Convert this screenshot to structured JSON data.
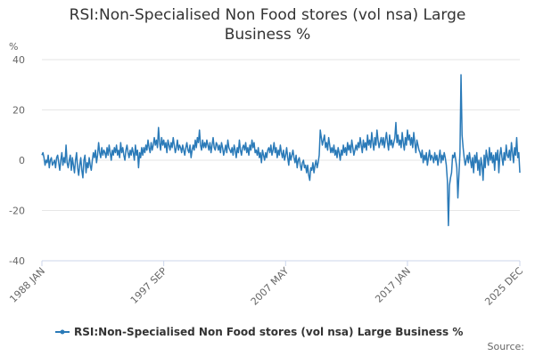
{
  "chart_data": {
    "type": "line",
    "title": [
      "RSI:Non-Specialised Non Food stores (vol nsa) Large",
      "Business %"
    ],
    "y_label": "%",
    "source": "Source:",
    "ylim": [
      -40,
      40
    ],
    "yticks": [
      -40,
      -20,
      0,
      20,
      40
    ],
    "grid": true,
    "legend": "bottom",
    "categories": [
      "1988 JAN",
      null,
      null,
      null,
      null,
      null,
      null,
      null,
      null,
      null,
      null,
      null,
      null,
      null,
      null,
      null,
      null,
      null,
      null,
      null,
      null,
      null,
      null,
      null,
      null,
      null,
      null,
      null,
      null,
      null,
      null,
      null,
      null,
      null,
      null,
      null,
      null,
      null,
      null,
      null,
      null,
      null,
      null,
      null,
      null,
      null,
      null,
      null,
      null,
      null,
      null,
      null,
      null,
      null,
      null,
      null,
      null,
      null,
      null,
      null,
      null,
      null,
      null,
      null,
      null,
      null,
      null,
      null,
      null,
      null,
      null,
      null,
      null,
      null,
      null,
      null,
      null,
      null,
      null,
      null,
      null,
      null,
      null,
      null,
      null,
      null,
      null,
      null,
      null,
      null,
      null,
      null,
      null,
      null,
      null,
      null,
      null,
      null,
      null,
      null,
      null,
      null,
      null,
      null,
      null,
      null,
      null,
      null,
      null,
      null,
      null,
      null,
      null,
      null,
      null,
      null,
      "1997 SEP",
      null,
      null,
      null,
      null,
      null,
      null,
      null,
      null,
      null,
      null,
      null,
      null,
      null,
      null,
      null,
      null,
      null,
      null,
      null,
      null,
      null,
      null,
      null,
      null,
      null,
      null,
      null,
      null,
      null,
      null,
      null,
      null,
      null,
      null,
      null,
      null,
      null,
      null,
      null,
      null,
      null,
      null,
      null,
      null,
      null,
      null,
      null,
      null,
      null,
      null,
      null,
      null,
      null,
      null,
      null,
      null,
      null,
      null,
      null,
      null,
      null,
      null,
      null,
      null,
      null,
      null,
      null,
      null,
      null,
      null,
      null,
      null,
      null,
      null,
      null,
      null,
      null,
      null,
      null,
      null,
      null,
      null,
      null,
      null,
      null,
      null,
      null,
      null,
      null,
      null,
      null,
      null,
      null,
      null,
      null,
      null,
      null,
      null,
      null,
      null,
      null,
      null,
      null,
      null,
      null,
      null,
      null,
      null,
      null,
      null,
      null,
      null,
      null,
      null,
      null,
      "2007 MAY",
      null,
      null,
      null,
      null,
      null,
      null,
      null,
      null,
      null,
      null,
      null,
      null,
      null,
      null,
      null,
      null,
      null,
      null,
      null,
      null,
      null,
      null,
      null,
      null,
      null,
      null,
      null,
      null,
      null,
      null,
      null,
      null,
      null,
      null,
      null,
      null,
      null,
      null,
      null,
      null,
      null,
      null,
      null,
      null,
      null,
      null,
      null,
      null,
      null,
      null,
      null,
      null,
      null,
      null,
      null,
      null,
      null,
      null,
      null,
      null,
      null,
      null,
      null,
      null,
      null,
      null,
      null,
      null,
      null,
      null,
      null,
      null,
      null,
      null,
      null,
      null,
      null,
      null,
      null,
      null,
      null,
      null,
      null,
      null,
      null,
      null,
      null,
      null,
      null,
      null,
      null,
      null,
      null,
      null,
      null,
      null,
      null,
      null,
      null,
      null,
      null,
      null,
      null,
      null,
      null,
      null,
      null,
      null,
      null,
      null,
      null,
      null,
      null,
      null,
      null,
      "2017 JAN",
      null,
      null,
      null,
      null,
      null,
      null,
      null,
      null,
      null,
      null,
      null,
      null,
      null,
      null,
      null,
      null,
      null,
      null,
      null,
      null,
      null,
      null,
      null,
      null,
      null,
      null,
      null,
      null,
      null,
      null,
      null,
      null,
      null,
      null,
      null,
      null,
      null,
      null,
      null,
      null,
      null,
      null,
      null,
      null,
      null,
      null,
      null,
      null,
      null,
      null,
      null,
      null,
      null,
      null,
      null,
      null,
      null,
      null,
      null,
      null,
      null,
      null,
      null,
      null,
      null,
      null,
      null,
      null,
      null,
      null,
      null,
      null,
      null,
      null,
      null,
      null,
      null,
      null,
      null,
      null,
      null,
      null,
      null,
      null,
      null,
      null,
      null,
      null,
      null,
      null,
      null,
      null,
      null,
      null,
      null,
      null,
      null,
      null,
      null,
      null,
      null,
      null,
      null,
      null,
      null,
      null,
      "2025 DEC"
    ],
    "series": [
      {
        "name": "RSI:Non-Specialised Non Food stores (vol nsa) Large Business %",
        "color": "#2a7ab8",
        "values": [
          2,
          3,
          1,
          -2,
          0,
          -1,
          2,
          -3,
          0,
          1,
          -2,
          -1,
          0,
          -3,
          1,
          2,
          -1,
          -4,
          0,
          3,
          -2,
          1,
          -1,
          6,
          -1,
          -3,
          0,
          2,
          -4,
          1,
          -2,
          -5,
          0,
          3,
          -3,
          -6,
          -2,
          1,
          -4,
          -7,
          0,
          2,
          -5,
          -1,
          -3,
          1,
          -2,
          -4,
          0,
          3,
          1,
          4,
          -1,
          2,
          7,
          3,
          1,
          5,
          2,
          4,
          3,
          1,
          5,
          2,
          6,
          3,
          0,
          4,
          2,
          5,
          3,
          6,
          2,
          4,
          1,
          7,
          3,
          5,
          2,
          0,
          4,
          6,
          3,
          1,
          4,
          2,
          5,
          3,
          0,
          6,
          2,
          4,
          -3,
          3,
          1,
          5,
          2,
          5,
          3,
          6,
          4,
          8,
          5,
          3,
          7,
          4,
          6,
          9,
          6,
          8,
          5,
          13,
          7,
          4,
          9,
          6,
          8,
          5,
          7,
          3,
          8,
          6,
          4,
          7,
          5,
          9,
          6,
          3,
          5,
          8,
          4,
          6,
          5,
          3,
          6,
          4,
          2,
          5,
          7,
          4,
          3,
          6,
          1,
          4,
          6,
          4,
          8,
          5,
          9,
          7,
          12,
          6,
          4,
          8,
          5,
          7,
          5,
          8,
          6,
          4,
          7,
          3,
          6,
          9,
          5,
          4,
          7,
          6,
          4,
          6,
          3,
          7,
          5,
          2,
          4,
          6,
          3,
          8,
          5,
          4,
          3,
          5,
          2,
          6,
          4,
          1,
          5,
          3,
          8,
          4,
          2,
          5,
          6,
          4,
          7,
          3,
          5,
          2,
          6,
          4,
          8,
          5,
          7,
          3,
          4,
          2,
          5,
          1,
          3,
          -1,
          4,
          2,
          0,
          3,
          1,
          4,
          5,
          3,
          6,
          2,
          4,
          7,
          3,
          5,
          1,
          4,
          2,
          6,
          3,
          1,
          4,
          0,
          2,
          5,
          1,
          -2,
          3,
          0,
          2,
          4,
          1,
          -1,
          2,
          -3,
          0,
          1,
          -2,
          -4,
          -1,
          0,
          -3,
          -2,
          -5,
          -2,
          -6,
          -8,
          -3,
          -4,
          -1,
          -5,
          -2,
          0,
          -3,
          -1,
          2,
          12,
          9,
          6,
          8,
          10,
          5,
          7,
          4,
          9,
          6,
          3,
          5,
          3,
          6,
          2,
          4,
          1,
          5,
          3,
          0,
          4,
          2,
          6,
          3,
          5,
          2,
          7,
          4,
          6,
          3,
          8,
          5,
          2,
          4,
          6,
          4,
          7,
          5,
          9,
          6,
          3,
          8,
          5,
          7,
          4,
          10,
          6,
          8,
          5,
          11,
          7,
          4,
          9,
          6,
          12,
          8,
          5,
          7,
          9,
          6,
          9,
          5,
          8,
          11,
          7,
          4,
          10,
          6,
          8,
          5,
          7,
          9,
          15,
          7,
          10,
          6,
          8,
          5,
          11,
          7,
          4,
          9,
          6,
          12,
          8,
          10,
          6,
          9,
          5,
          11,
          7,
          3,
          8,
          6,
          4,
          3,
          1,
          4,
          -1,
          2,
          0,
          3,
          -2,
          1,
          4,
          0,
          2,
          1,
          -1,
          3,
          0,
          2,
          -2,
          1,
          4,
          -1,
          2,
          0,
          3,
          1,
          -2,
          -8,
          -26,
          -10,
          -7,
          -5,
          2,
          1,
          3,
          0,
          -3,
          -15,
          -6,
          3,
          34,
          10,
          5,
          1,
          -2,
          0,
          2,
          -1,
          3,
          0,
          -3,
          1,
          -5,
          2,
          -1,
          3,
          -4,
          0,
          -6,
          1,
          -2,
          -8,
          2,
          -3,
          4,
          1,
          -2,
          5,
          0,
          3,
          -1,
          2,
          -4,
          3,
          0,
          4,
          -5,
          2,
          5,
          1,
          -2,
          3,
          0,
          6,
          2,
          1,
          4,
          0,
          7,
          3,
          -1,
          5,
          2,
          9,
          1,
          3,
          -5
        ]
      }
    ]
  }
}
